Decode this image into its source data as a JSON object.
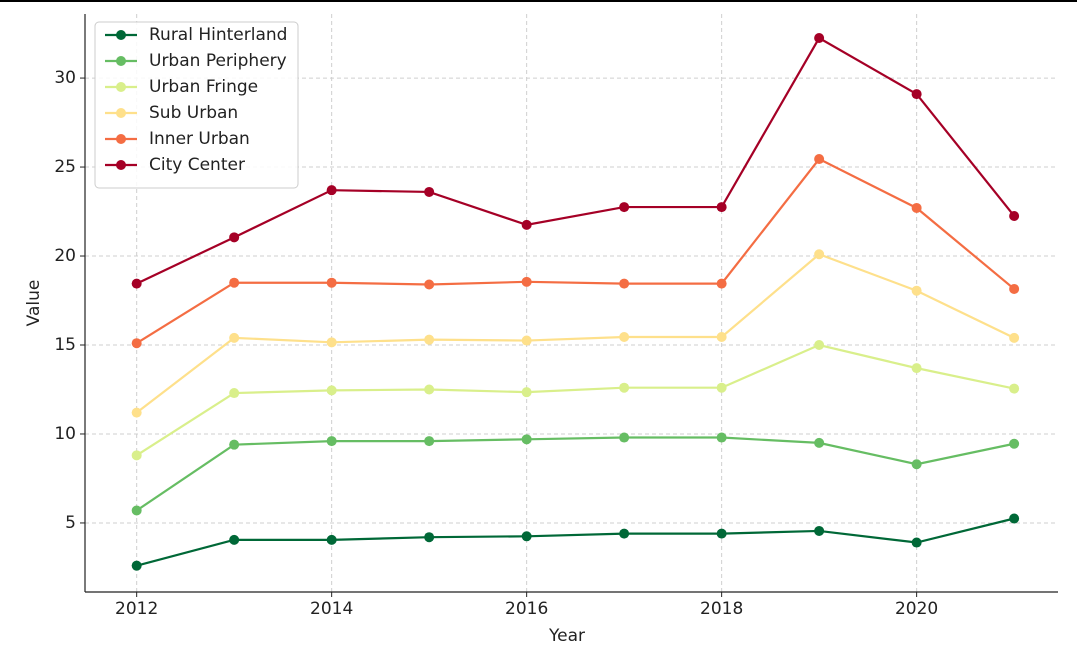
{
  "chart_data": {
    "type": "line",
    "x_label": "Year",
    "y_label": "Value",
    "x": [
      2012,
      2013,
      2014,
      2015,
      2016,
      2017,
      2018,
      2019,
      2020,
      2021
    ],
    "series": [
      {
        "name": "Rural Hinterland",
        "color": "#006837",
        "values": [
          2.6,
          4.05,
          4.05,
          4.2,
          4.25,
          4.4,
          4.4,
          4.55,
          3.9,
          5.25
        ]
      },
      {
        "name": "Urban Periphery",
        "color": "#66bd63",
        "values": [
          5.7,
          9.4,
          9.6,
          9.6,
          9.7,
          9.8,
          9.8,
          9.5,
          8.3,
          9.45
        ]
      },
      {
        "name": "Urban Fringe",
        "color": "#d9ef8b",
        "values": [
          8.8,
          12.3,
          12.45,
          12.5,
          12.35,
          12.6,
          12.6,
          15.0,
          13.7,
          12.55
        ]
      },
      {
        "name": "Sub Urban",
        "color": "#fee08b",
        "values": [
          11.2,
          15.4,
          15.15,
          15.3,
          15.25,
          15.45,
          15.45,
          20.1,
          18.05,
          15.4
        ]
      },
      {
        "name": "Inner Urban",
        "color": "#f46d43",
        "values": [
          15.1,
          18.5,
          18.5,
          18.4,
          18.55,
          18.45,
          18.45,
          25.45,
          22.7,
          18.15
        ]
      },
      {
        "name": "City Center",
        "color": "#a50026",
        "values": [
          18.45,
          21.05,
          23.7,
          23.6,
          21.75,
          22.75,
          22.75,
          32.25,
          29.1,
          22.25
        ]
      }
    ],
    "xlim": [
      2011.47,
      2021.45
    ],
    "xticks": [
      2012,
      2014,
      2016,
      2018,
      2020
    ],
    "ylim": [
      1.12,
      33.6
    ],
    "yticks": [
      5,
      10,
      15,
      20,
      25,
      30
    ],
    "grid": true,
    "legend": "upper-left"
  }
}
